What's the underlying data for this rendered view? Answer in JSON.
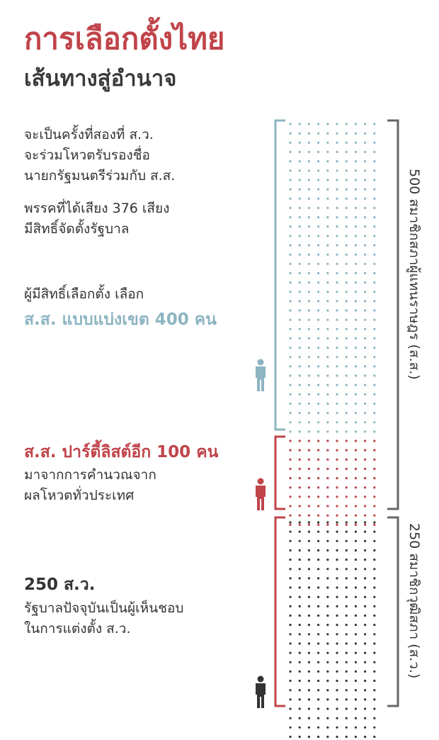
{
  "title": "การเลือกตั้งไทย",
  "subtitle": "เส้นทางสู่อำนาจ",
  "note1": {
    "line1": "จะเป็นครั้งที่สองที่ ส.ว.",
    "line2": "จะร่วมโหวตรับรองชื่อ",
    "line3": "นายกรัฐมนตรีร่วมกับ ส.ส."
  },
  "note2": {
    "line1": "พรรคที่ได้เสียง 376 เสียง",
    "line2": "มีสิทธิ์จัดตั้งรัฐบาล"
  },
  "constituency": {
    "intro": "ผู้มีสิทธิ์เลือกตั้ง เลือก",
    "headline": "ส.ส. แบบแบ่งเขต 400 คน",
    "count": 400,
    "color": "#8db4c2",
    "icon": "person-icon"
  },
  "partylist": {
    "headline": "ส.ส. ปาร์ตี้ลิสต์อีก 100 คน",
    "line1": "มาจากการคำนวณจาก",
    "line2": "ผลโหวตทั่วประเทศ",
    "count": 100,
    "color": "#c0444a",
    "icon": "person-icon"
  },
  "senate": {
    "headline": "250 ส.ว.",
    "line1": "รัฐบาลปัจจุบันเป็นผู้เห็นชอบ",
    "line2": "ในการแต่งตั้ง ส.ว.",
    "count": 250,
    "color": "#333333",
    "icon": "person-icon"
  },
  "brace_labels": {
    "house": "500 สมาชิกสภาผู้แทนราษฎร (ส.ส.)",
    "senate": "250 สมาชิกวุฒิสภา (ส.ว.)"
  },
  "colors": {
    "title": "#c0444a",
    "subtitle": "#3a3a3a",
    "teal": "#8db4c2",
    "red": "#c0444a",
    "dark": "#333333",
    "brace": "#666666"
  }
}
